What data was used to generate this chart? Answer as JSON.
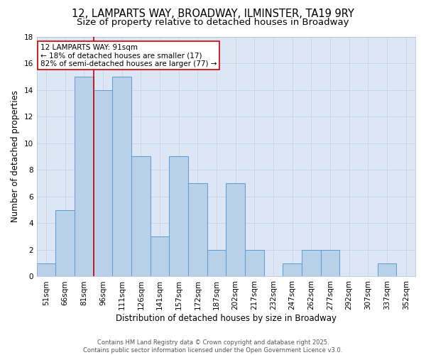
{
  "title_line1": "12, LAMPARTS WAY, BROADWAY, ILMINSTER, TA19 9RY",
  "title_line2": "Size of property relative to detached houses in Broadway",
  "xlabel": "Distribution of detached houses by size in Broadway",
  "ylabel": "Number of detached properties",
  "categories": [
    "51sqm",
    "66sqm",
    "81sqm",
    "96sqm",
    "111sqm",
    "126sqm",
    "141sqm",
    "157sqm",
    "172sqm",
    "187sqm",
    "202sqm",
    "217sqm",
    "232sqm",
    "247sqm",
    "262sqm",
    "277sqm",
    "292sqm",
    "307sqm",
    "337sqm",
    "352sqm"
  ],
  "values": [
    1,
    5,
    15,
    14,
    15,
    9,
    3,
    9,
    7,
    2,
    7,
    2,
    0,
    1,
    2,
    2,
    0,
    0,
    1,
    0
  ],
  "bar_color": "#b8d0e8",
  "bar_edge_color": "#5b9bd5",
  "vline_x": 2.5,
  "vline_color": "#cc0000",
  "annotation_text": "12 LAMPARTS WAY: 91sqm\n← 18% of detached houses are smaller (17)\n82% of semi-detached houses are larger (77) →",
  "annotation_box_color": "#ffffff",
  "annotation_box_edge": "#cc0000",
  "ylim": [
    0,
    18
  ],
  "yticks": [
    0,
    2,
    4,
    6,
    8,
    10,
    12,
    14,
    16,
    18
  ],
  "grid_color": "#c8d4e8",
  "background_color": "#dce6f5",
  "footer": "Contains HM Land Registry data © Crown copyright and database right 2025.\nContains public sector information licensed under the Open Government Licence v3.0.",
  "title_fontsize": 10.5,
  "subtitle_fontsize": 9.5,
  "axis_label_fontsize": 8.5,
  "tick_fontsize": 7.5,
  "annotation_fontsize": 7.5
}
